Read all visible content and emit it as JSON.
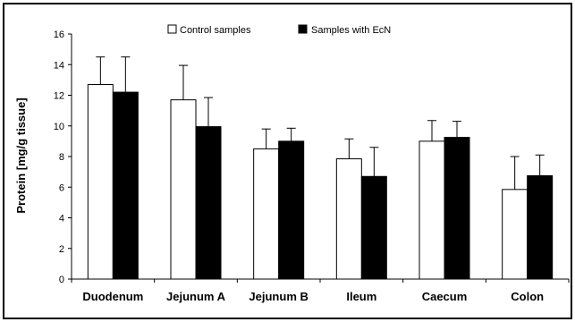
{
  "chart_data": {
    "type": "bar",
    "title": "",
    "xlabel": "",
    "ylabel": "Protein [mg/g tissue]",
    "ylim": [
      0,
      16
    ],
    "yticks": [
      0,
      2,
      4,
      6,
      8,
      10,
      12,
      14,
      16
    ],
    "grid": false,
    "legend_position": "top",
    "categories": [
      "Duodenum",
      "Jejunum A",
      "Jejunum B",
      "Ileum",
      "Caecum",
      "Colon"
    ],
    "series": [
      {
        "name": "Control samples",
        "color": "#ffffff",
        "values": [
          12.7,
          11.7,
          8.5,
          7.85,
          9.0,
          5.85
        ],
        "errors": [
          1.8,
          2.25,
          1.3,
          1.3,
          1.35,
          2.15
        ]
      },
      {
        "name": "Samples with EcN",
        "color": "#000000",
        "values": [
          12.2,
          9.95,
          9.0,
          6.7,
          9.25,
          6.75
        ],
        "errors": [
          2.3,
          1.9,
          0.85,
          1.9,
          1.05,
          1.35
        ]
      }
    ]
  }
}
